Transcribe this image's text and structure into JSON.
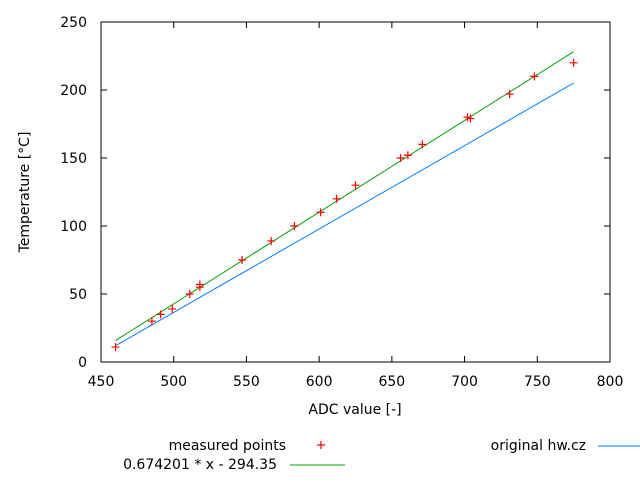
{
  "chart_data": {
    "type": "scatter",
    "title": "",
    "xlabel": "ADC value [-]",
    "ylabel": "Temperature [°C]",
    "xlim": [
      450,
      800
    ],
    "ylim": [
      0,
      250
    ],
    "xticks": [
      450,
      500,
      550,
      600,
      650,
      700,
      750,
      800
    ],
    "yticks": [
      0,
      50,
      100,
      150,
      200,
      250
    ],
    "grid": false,
    "legend_position": "bottom",
    "series": [
      {
        "name": "measured points",
        "kind": "points",
        "marker": "+",
        "color": "#ff0000",
        "points": [
          [
            460,
            11
          ],
          [
            485,
            30
          ],
          [
            491,
            35
          ],
          [
            499,
            39
          ],
          [
            511,
            50
          ],
          [
            518,
            55
          ],
          [
            518,
            57
          ],
          [
            547,
            75
          ],
          [
            567,
            89
          ],
          [
            583,
            100
          ],
          [
            601,
            110
          ],
          [
            612,
            120
          ],
          [
            625,
            130
          ],
          [
            656,
            150
          ],
          [
            661,
            152
          ],
          [
            671,
            160
          ],
          [
            702,
            180
          ],
          [
            704,
            179
          ],
          [
            731,
            197
          ],
          [
            748,
            210
          ],
          [
            775,
            220
          ]
        ]
      },
      {
        "name": "original hw.cz",
        "kind": "line",
        "color": "#0080ff",
        "x_range": [
          460,
          775
        ],
        "slope": 0.613,
        "intercept": -270
      },
      {
        "name": "0.674201 * x - 294.35",
        "kind": "line",
        "color": "#00a000",
        "x_range": [
          460,
          775
        ],
        "slope": 0.674201,
        "intercept": -294.35
      }
    ]
  }
}
